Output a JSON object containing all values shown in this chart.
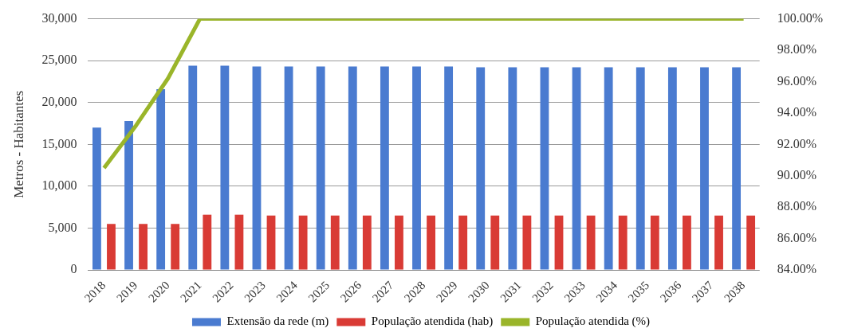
{
  "chart_data": {
    "type": "bar",
    "ylabel": "Metros - Habitantes",
    "categories": [
      "2018",
      "2019",
      "2020",
      "2021",
      "2022",
      "2023",
      "2024",
      "2025",
      "2026",
      "2027",
      "2028",
      "2029",
      "2030",
      "2031",
      "2032",
      "2033",
      "2034",
      "2035",
      "2036",
      "2037",
      "2038"
    ],
    "series": [
      {
        "name": "Extensão da rede (m)",
        "color": "#4a7bd0",
        "values": [
          17000,
          17800,
          21600,
          24400,
          24400,
          24300,
          24300,
          24300,
          24300,
          24300,
          24300,
          24300,
          24200,
          24200,
          24200,
          24200,
          24200,
          24200,
          24200,
          24200,
          24200
        ]
      },
      {
        "name": "População atendida (hab)",
        "color": "#d93b35",
        "values": [
          5500,
          5500,
          5500,
          6600,
          6600,
          6500,
          6500,
          6500,
          6500,
          6500,
          6500,
          6500,
          6500,
          6500,
          6500,
          6500,
          6500,
          6500,
          6500,
          6500,
          6500
        ]
      },
      {
        "name": "População atendida (%)",
        "color": "#9ab52a",
        "type": "line",
        "axis": "y2",
        "values": [
          90.5,
          93.2,
          96.2,
          100,
          100,
          100,
          100,
          100,
          100,
          100,
          100,
          100,
          100,
          100,
          100,
          100,
          100,
          100,
          100,
          100,
          100
        ]
      }
    ],
    "ylim": [
      0,
      30000
    ],
    "yticks": [
      0,
      {
        "value": 5000,
        "label": "5,000"
      },
      {
        "value": 10000,
        "label": "10,000"
      },
      {
        "value": 15000,
        "label": "15,000"
      },
      {
        "value": 20000,
        "label": "20,000"
      },
      {
        "value": 25000,
        "label": "25,000"
      },
      {
        "value": 30000,
        "label": "30,000"
      }
    ],
    "y2lim": [
      84,
      100
    ],
    "y2ticks": [
      {
        "value": 84,
        "label": "84.00%"
      },
      {
        "value": 86,
        "label": "86.00%"
      },
      {
        "value": 88,
        "label": "88.00%"
      },
      {
        "value": 90,
        "label": "90.00%"
      },
      {
        "value": 92,
        "label": "92.00%"
      },
      {
        "value": 94,
        "label": "94.00%"
      },
      {
        "value": 96,
        "label": "96.00%"
      },
      {
        "value": 98,
        "label": "98.00%"
      },
      {
        "value": 100,
        "label": "100.00%"
      }
    ],
    "grid": "y",
    "legend": "bottom",
    "marker": "none"
  }
}
